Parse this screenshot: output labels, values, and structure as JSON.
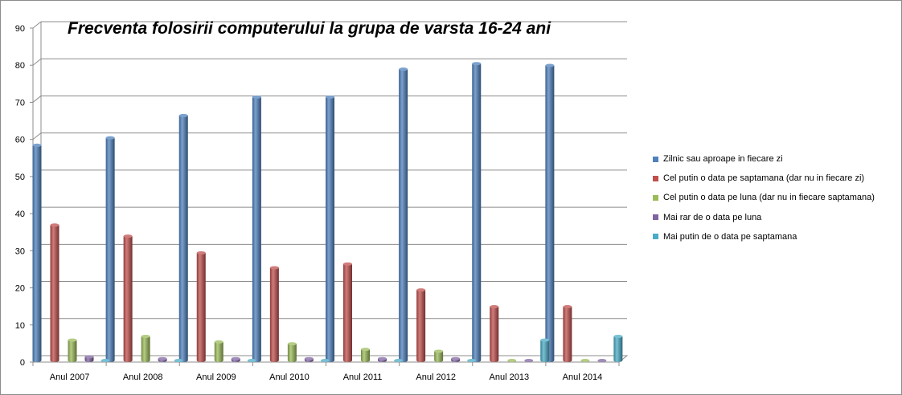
{
  "chart_data": {
    "type": "bar",
    "title": "Frecventa folosirii computerului la grupa de varsta 16-24 ani",
    "categories": [
      "Anul 2007",
      "Anul 2008",
      "Anul 2009",
      "Anul 2010",
      "Anul 2011",
      "Anul 2012",
      "Anul 2013",
      "Anul 2014"
    ],
    "series": [
      {
        "name": "Zilnic sau aproape in fiecare zi",
        "color": "#4f81bd",
        "values": [
          58,
          60,
          66,
          71,
          71,
          78.5,
          80,
          79.5
        ]
      },
      {
        "name": "Cel putin o data pe saptamana (dar nu in fiecare zi)",
        "color": "#c0504d",
        "values": [
          36.5,
          33.5,
          29,
          25,
          26,
          19,
          14.5,
          14.5
        ]
      },
      {
        "name": "Cel putin o data pe luna (dar nu in fiecare saptamana)",
        "color": "#9bbb59",
        "values": [
          5.5,
          6.5,
          5,
          4.5,
          3,
          2.5,
          0,
          0
        ]
      },
      {
        "name": "Mai rar de o data pe luna",
        "color": "#8064a2",
        "values": [
          1,
          0.5,
          0.5,
          0.5,
          0.5,
          0.5,
          0,
          0
        ]
      },
      {
        "name": "Mai putin de o data pe saptamana",
        "color": "#4bacc6",
        "values": [
          0,
          0,
          0,
          0,
          0,
          0,
          5.5,
          6.5
        ]
      }
    ],
    "ylim": [
      0,
      90
    ],
    "yticks": [
      "0",
      "10",
      "20",
      "30",
      "40",
      "50",
      "60",
      "70",
      "80",
      "90"
    ],
    "grid": true,
    "legend_position": "right",
    "xlabel": "",
    "ylabel": ""
  }
}
